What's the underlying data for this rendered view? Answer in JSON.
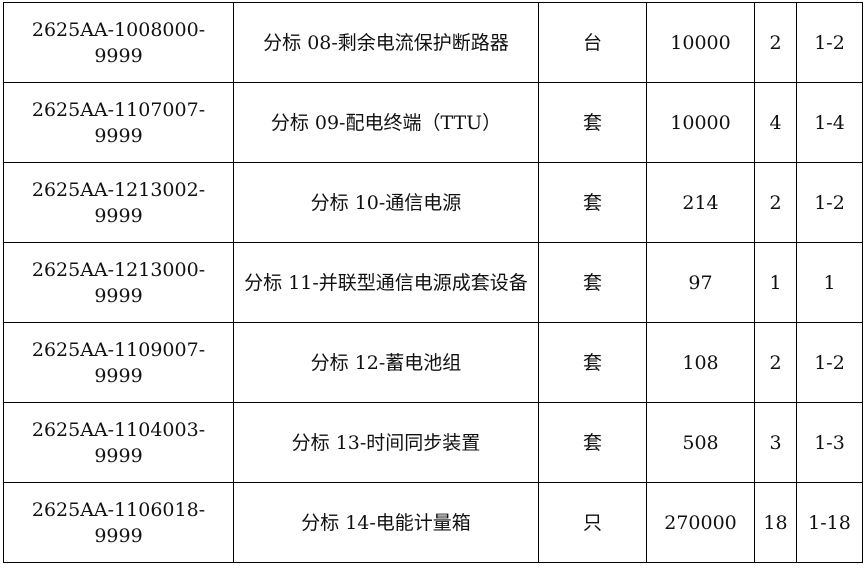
{
  "rows": [
    {
      "code": "2625AA-1008000-9999",
      "name": "分标 08-剩余电流保护断路器",
      "unit": "台",
      "qty": "10000",
      "count": "2",
      "range": "1-2"
    },
    {
      "code": "2625AA-1107007-9999",
      "name": "分标 09-配电终端（TTU）",
      "unit": "套",
      "qty": "10000",
      "count": "4",
      "range": "1-4"
    },
    {
      "code": "2625AA-1213002-9999",
      "name": "分标 10-通信电源",
      "unit": "套",
      "qty": "214",
      "count": "2",
      "range": "1-2"
    },
    {
      "code": "2625AA-1213000-9999",
      "name": "分标 11-并联型通信电源成套设备",
      "unit": "套",
      "qty": "97",
      "count": "1",
      "range": "1"
    },
    {
      "code": "2625AA-1109007-9999",
      "name": "分标 12-蓄电池组",
      "unit": "套",
      "qty": "108",
      "count": "2",
      "range": "1-2"
    },
    {
      "code": "2625AA-1104003-9999",
      "name": "分标 13-时间同步装置",
      "unit": "套",
      "qty": "508",
      "count": "3",
      "range": "1-3"
    },
    {
      "code": "2625AA-1106018-9999",
      "name": "分标 14-电能计量箱",
      "unit": "只",
      "qty": "270000",
      "count": "18",
      "range": "1-18"
    }
  ]
}
